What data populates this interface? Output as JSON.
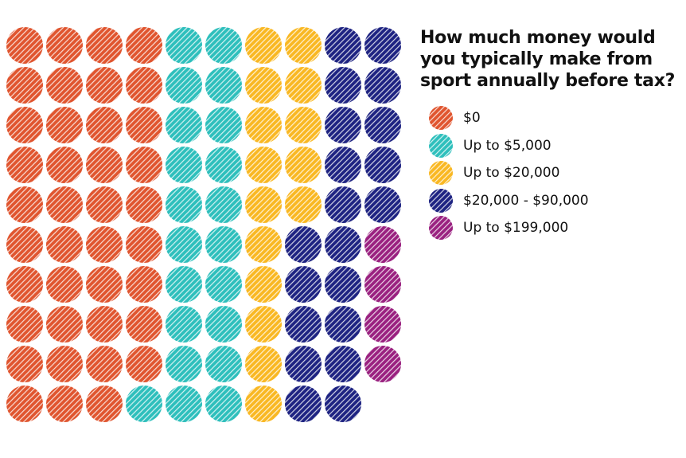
{
  "chart_data": {
    "type": "waffle",
    "title": "How much money would you typically make from sport annually before tax?",
    "grid": {
      "rows": 10,
      "columns": 10,
      "fill_order": "column-major, top-to-bottom"
    },
    "legend_placement": "right",
    "categories": [
      {
        "label": "$0",
        "count": 39,
        "color": "#e0552f"
      },
      {
        "label": "Up to $5,000",
        "count": 21,
        "color": "#2ebfbc"
      },
      {
        "label": "Up to $20,000",
        "count": 15,
        "color": "#f9b823"
      },
      {
        "label": "$20,000 - $90,000",
        "count": 20,
        "color": "#1e2382"
      },
      {
        "label": "Up to $199,000",
        "count": 4,
        "color": "#9a2180"
      }
    ]
  }
}
